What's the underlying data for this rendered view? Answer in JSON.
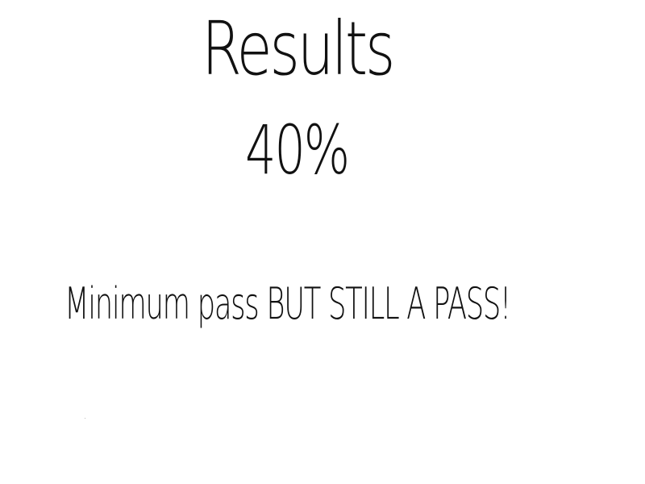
{
  "results": {
    "title": "Results",
    "score": "40%",
    "message": "Minimum pass BUT STILL A PASS!"
  },
  "colors": {
    "background": "#ffffff",
    "text": "#111111"
  }
}
